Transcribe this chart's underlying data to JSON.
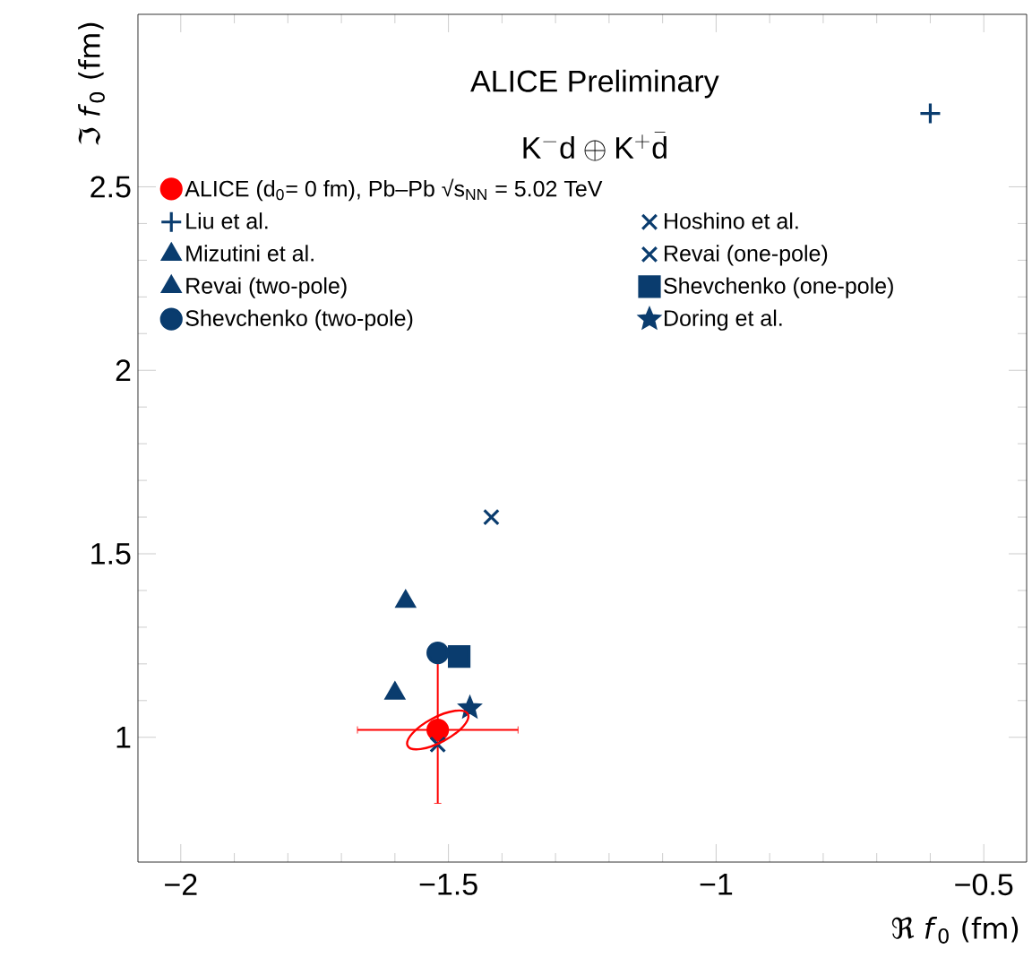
{
  "chart_data": {
    "type": "scatter",
    "xlabel": "ℜ *f*$_{0}$ (fm)",
    "ylabel": "ℑ *f*$_{0}$ (fm)",
    "annotations": [
      "ALICE Preliminary",
      "\\mathrm{K}^{-}\\mathrm{d} \\oplus \\mathrm{K}^{+}\\bar{\\mathrm{d}}"
    ],
    "xlim": [
      -2.08,
      -0.42
    ],
    "ylim": [
      0.66,
      2.97
    ],
    "xticks": [
      {
        "value": -2,
        "label": "−2"
      },
      {
        "value": -1.5,
        "label": "−1.5"
      },
      {
        "value": -1,
        "label": "−1"
      },
      {
        "value": -0.5,
        "label": "−0.5"
      }
    ],
    "yticks": [
      1,
      1.5,
      2,
      2.5
    ],
    "legend": "top left",
    "grid": false,
    "series": [
      {
        "name": "ALICE (d$_{0}$= 0 fm), Pb–Pb √s$_{NN}$ = 5.02 TeV",
        "color": "#ff0000",
        "marker": "circle",
        "x": [
          -1.52
        ],
        "values": [
          1.02
        ],
        "errors": [
          0.2
        ],
        "xerrors": [
          0.15
        ]
      },
      {
        "name": "Liu et al.",
        "color": "#0a3c6e",
        "marker": "plus",
        "x": [
          -0.6
        ],
        "values": [
          2.7
        ]
      },
      {
        "name": "Hoshino et al.",
        "color": "#0a3c6e",
        "marker": "cross",
        "x": [
          -1.42
        ],
        "values": [
          1.6
        ]
      },
      {
        "name": "Mizutini et al.",
        "color": "#0a3c6e",
        "marker": "triangle",
        "x": [
          -1.58
        ],
        "values": [
          1.37
        ]
      },
      {
        "name": "Revai (one-pole)",
        "color": "#0a3c6e",
        "marker": "cross",
        "x": [
          -1.52
        ],
        "values": [
          0.98
        ]
      },
      {
        "name": "Revai (two-pole)",
        "color": "#0a3c6e",
        "marker": "triangle",
        "x": [
          -1.6
        ],
        "values": [
          1.12
        ]
      },
      {
        "name": "Shevchenko (one-pole)",
        "color": "#0a3c6e",
        "marker": "square",
        "x": [
          -1.48
        ],
        "values": [
          1.22
        ]
      },
      {
        "name": "Shevchenko (two-pole)",
        "color": "#0a3c6e",
        "marker": "circle",
        "x": [
          -1.52
        ],
        "values": [
          1.23
        ]
      },
      {
        "name": "Doring et al.",
        "color": "#0a3c6e",
        "marker": "star",
        "x": [
          -1.46
        ],
        "values": [
          1.08
        ]
      }
    ]
  }
}
